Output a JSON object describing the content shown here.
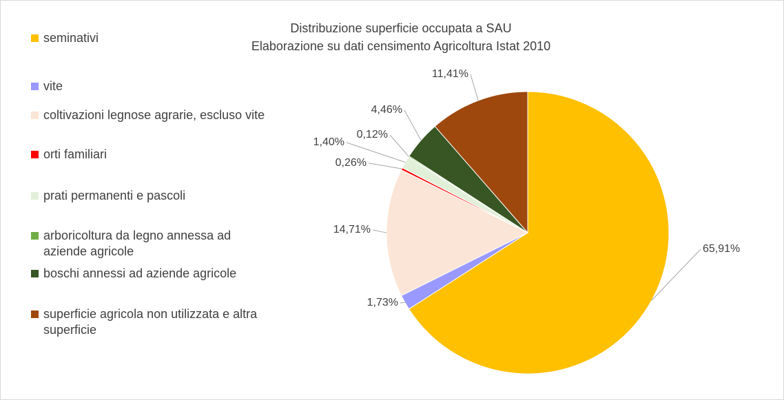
{
  "chart_data": {
    "type": "pie",
    "title": "Distribuzione superficie occupata a SAU",
    "subtitle": "Elaborazione su dati censimento Agricoltura Istat 2010",
    "categories": [
      "seminativi",
      "vite",
      "coltivazioni legnose agrarie, escluso vite",
      "orti familiari",
      "prati permanenti e pascoli",
      "arboricoltura da legno annessa ad aziende agricole",
      "boschi annessi ad aziende agricole",
      "superficie agricola non utilizzata e altra superficie"
    ],
    "values": [
      65.91,
      1.73,
      14.71,
      0.26,
      1.4,
      0.12,
      4.46,
      11.41
    ],
    "value_labels": [
      "65,91%",
      "1,73%",
      "14,71%",
      "0,26%",
      "1,40%",
      "0,12%",
      "4,46%",
      "11,41%"
    ],
    "colors": [
      "#FFC000",
      "#9999FF",
      "#FBE5D6",
      "#FF0000",
      "#E2F0D9",
      "#70AD47",
      "#375623",
      "#9E480E"
    ],
    "legend": "left"
  }
}
